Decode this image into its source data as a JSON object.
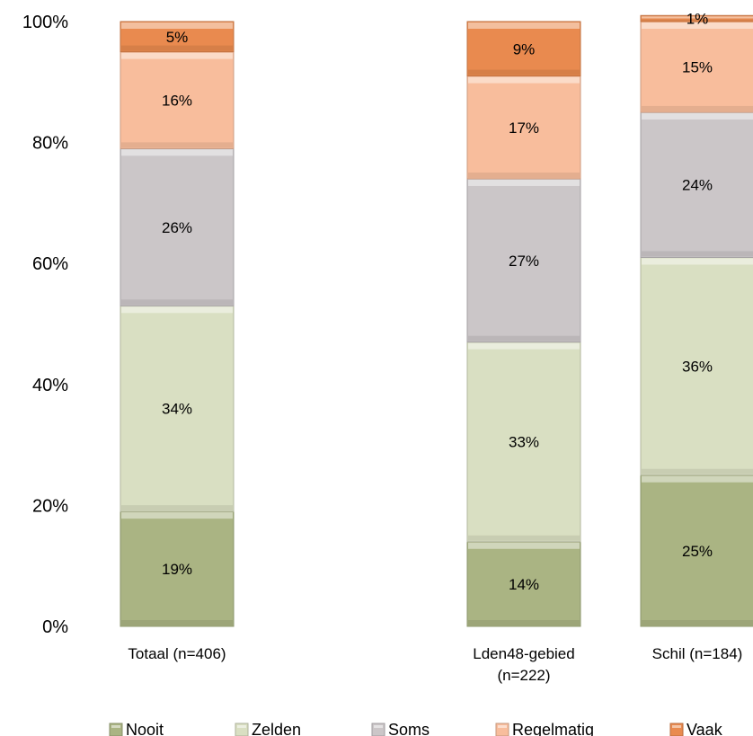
{
  "chart_data": {
    "type": "bar",
    "stacked": true,
    "percent": true,
    "categories": [
      "Totaal (n=406)",
      "Lden48-gebied (n=222)",
      "Schil (n=184)"
    ],
    "series": [
      {
        "name": "Nooit",
        "values": [
          19,
          14,
          25
        ],
        "color": "#aab483"
      },
      {
        "name": "Zelden",
        "values": [
          34,
          33,
          36
        ],
        "color": "#d9dfc2"
      },
      {
        "name": "Soms",
        "values": [
          26,
          27,
          24
        ],
        "color": "#cbc6c8"
      },
      {
        "name": "Regelmatig",
        "values": [
          16,
          17,
          15
        ],
        "color": "#f8bd9c"
      },
      {
        "name": "Vaak",
        "values": [
          5,
          9,
          1
        ],
        "color": "#e98a4f"
      }
    ],
    "yticks": [
      "0%",
      "20%",
      "40%",
      "60%",
      "80%",
      "100%"
    ],
    "ylim": [
      0,
      100
    ],
    "legend_position": "bottom"
  }
}
